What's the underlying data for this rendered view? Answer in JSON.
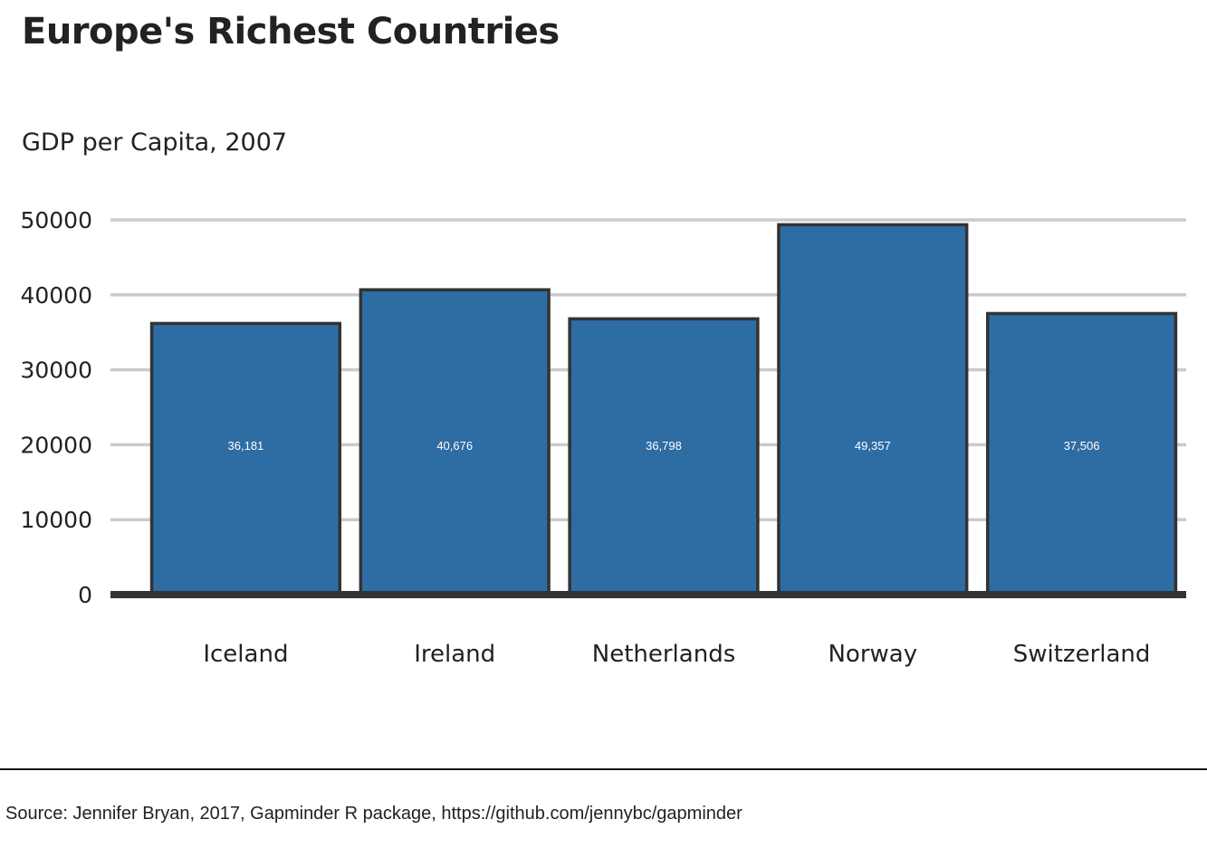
{
  "chart_data": {
    "type": "bar",
    "title": "Europe's Richest Countries",
    "subtitle": "GDP per Capita, 2007",
    "xlabel": "",
    "ylabel": "",
    "categories": [
      "Iceland",
      "Ireland",
      "Netherlands",
      "Norway",
      "Switzerland"
    ],
    "values": [
      36181,
      40676,
      36798,
      49357,
      37506
    ],
    "data_labels": [
      "36,181",
      "40,676",
      "36,798",
      "49,357",
      "37,506"
    ],
    "y_ticks": [
      0,
      10000,
      20000,
      30000,
      40000,
      50000
    ],
    "ylim": [
      0,
      50000
    ],
    "grid": true,
    "legend": "none",
    "bar_color": "#2E6CA4",
    "bar_outline": "#333333",
    "grid_color": "#CBCBCB",
    "label_color": "#FFFFFF"
  },
  "source": "Source: Jennifer Bryan, 2017, Gapminder R package, https://github.com/jennybc/gapminder"
}
